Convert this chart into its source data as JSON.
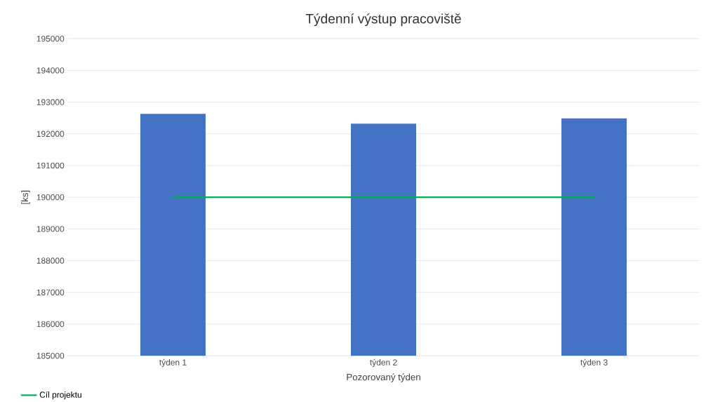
{
  "chart_data": {
    "type": "bar",
    "title": "Týdenní výstup pracoviště",
    "xlabel": "Pozorovaný týden",
    "ylabel": "[ks]",
    "categories": [
      "týden 1",
      "týden 2",
      "týden 3"
    ],
    "series": [
      {
        "color": "#4472c4",
        "values": [
          192630,
          192320,
          192490
        ]
      },
      {
        "type": "line",
        "name": "Cíl projektu",
        "color": "#00b050",
        "values": [
          190000,
          190000,
          190000
        ]
      }
    ],
    "ylim": [
      185000,
      195000
    ],
    "yticks": [
      185000,
      186000,
      187000,
      188000,
      189000,
      190000,
      191000,
      192000,
      193000,
      194000,
      195000
    ],
    "grid": "y",
    "legend": "bottom left"
  }
}
